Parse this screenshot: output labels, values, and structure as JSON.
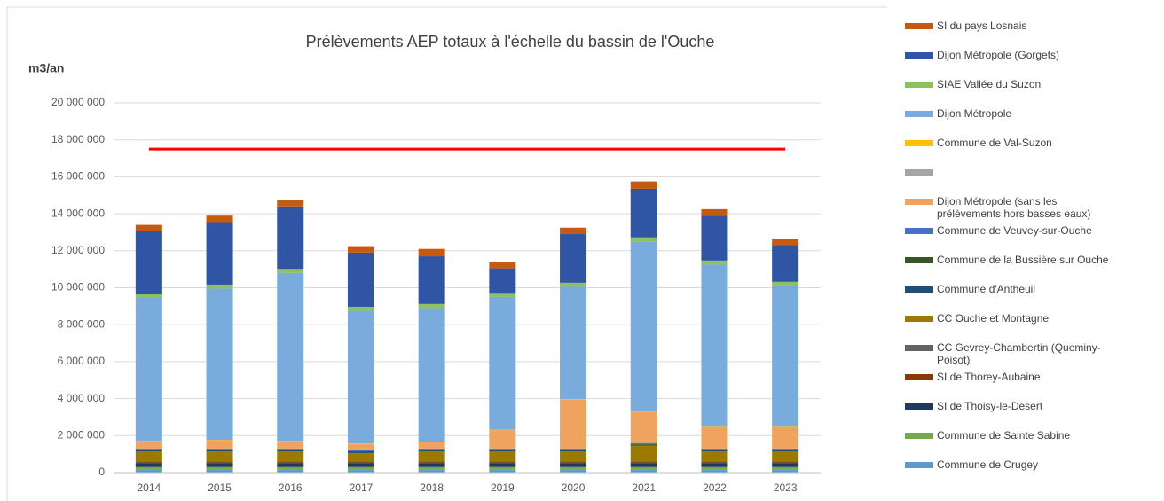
{
  "chart_data": {
    "type": "stacked_bar",
    "title": "Prélèvements AEP totaux à l'échelle du bassin de l'Ouche",
    "y_label": "m3/an",
    "categories": [
      "2014",
      "2015",
      "2016",
      "2017",
      "2018",
      "2019",
      "2020",
      "2021",
      "2022",
      "2023"
    ],
    "ylim": [
      0,
      20000000
    ],
    "yticks": [
      0,
      {
        "value": 2000000,
        "label": "2 000 000"
      },
      {
        "value": 4000000,
        "label": "4 000 000"
      },
      {
        "value": 6000000,
        "label": "6 000 000"
      },
      {
        "value": 8000000,
        "label": "8 000 000"
      },
      {
        "value": 10000000,
        "label": "10 000 000"
      },
      {
        "value": 12000000,
        "label": "12 000 000"
      },
      {
        "value": 14000000,
        "label": "14 000 000"
      },
      {
        "value": 16000000,
        "label": "16 000 000"
      },
      {
        "value": 18000000,
        "label": "18 000 000"
      },
      {
        "value": 20000000,
        "label": "20 000 000"
      }
    ],
    "grid": true,
    "threshold": {
      "value": 17500000,
      "color": "#ff0000"
    },
    "series": [
      {
        "name": "SI du pays Losnais",
        "color": "#c55a11",
        "values": [
          350000,
          350000,
          350000,
          350000,
          400000,
          350000,
          350000,
          400000,
          350000,
          350000
        ]
      },
      {
        "name": "Dijon Métropole (Gorgets)",
        "color": "#2f55a4",
        "values": [
          3380000,
          3380000,
          3380000,
          2930000,
          2580000,
          1330000,
          2630000,
          2630000,
          2430000,
          1980000
        ]
      },
      {
        "name": "SIAE Vallée du Suzon",
        "color": "#8cc060",
        "values": [
          220000,
          220000,
          220000,
          220000,
          220000,
          220000,
          220000,
          220000,
          220000,
          220000
        ]
      },
      {
        "name": "Dijon Métropole",
        "color": "#7aabdd",
        "values": [
          7730000,
          8180000,
          9080000,
          7180000,
          7230000,
          7180000,
          6080000,
          9180000,
          8730000,
          7580000
        ]
      },
      {
        "name": "Commune de Val-Suzon",
        "color": "#ffc000",
        "values": [
          20000,
          20000,
          20000,
          20000,
          20000,
          20000,
          20000,
          20000,
          20000,
          20000
        ]
      },
      {
        "name": null,
        "color": "#a5a5a5",
        "values": [
          0,
          0,
          0,
          0,
          0,
          0,
          0,
          0,
          0,
          0
        ]
      },
      {
        "name": "Dijon Métropole (sans les prélèvements hors basses eaux)",
        "color": "#f0a35e",
        "values": [
          400000,
          450000,
          400000,
          350000,
          350000,
          1000000,
          2650000,
          1700000,
          1200000,
          1200000
        ]
      },
      {
        "name": "Commune de Veuvey-sur-Ouche",
        "color": "#4472c4",
        "values": [
          50000,
          50000,
          50000,
          50000,
          50000,
          50000,
          50000,
          50000,
          50000,
          50000
        ]
      },
      {
        "name": "Commune de la Bussière sur Ouche",
        "color": "#375623",
        "values": [
          50000,
          50000,
          50000,
          50000,
          50000,
          50000,
          50000,
          50000,
          50000,
          50000
        ]
      },
      {
        "name": "Commune d'Antheuil",
        "color": "#1f4e79",
        "values": [
          50000,
          50000,
          50000,
          50000,
          50000,
          50000,
          50000,
          50000,
          50000,
          50000
        ]
      },
      {
        "name": "CC Ouche et Montagne",
        "color": "#9c7a00",
        "values": [
          550000,
          550000,
          550000,
          450000,
          550000,
          550000,
          550000,
          850000,
          550000,
          550000
        ]
      },
      {
        "name": "CC Gevrey-Chambertin (Queminy-Poisot)",
        "color": "#636363",
        "values": [
          50000,
          50000,
          50000,
          50000,
          50000,
          50000,
          50000,
          50000,
          50000,
          50000
        ]
      },
      {
        "name": "SI de Thorey-Aubaine",
        "color": "#843c0c",
        "values": [
          50000,
          50000,
          50000,
          50000,
          50000,
          50000,
          50000,
          50000,
          50000,
          50000
        ]
      },
      {
        "name": "SI de Thoisy-le-Desert",
        "color": "#203864",
        "values": [
          200000,
          200000,
          200000,
          200000,
          200000,
          200000,
          200000,
          200000,
          200000,
          200000
        ]
      },
      {
        "name": "Commune de Sainte Sabine",
        "color": "#70ad47",
        "values": [
          150000,
          150000,
          150000,
          150000,
          150000,
          150000,
          150000,
          150000,
          150000,
          150000
        ]
      },
      {
        "name": "Commune de Crugey",
        "color": "#5b9bd5",
        "values": [
          150000,
          150000,
          150000,
          150000,
          150000,
          150000,
          150000,
          150000,
          150000,
          150000
        ]
      }
    ]
  }
}
